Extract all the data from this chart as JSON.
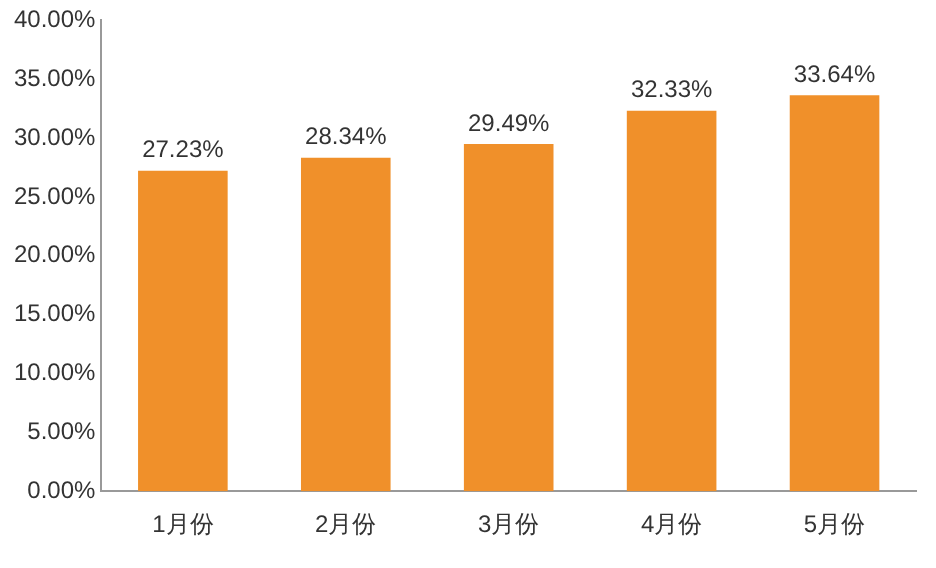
{
  "chart_data": {
    "type": "bar",
    "categories": [
      "1月份",
      "2月份",
      "3月份",
      "4月份",
      "5月份"
    ],
    "values": [
      27.23,
      28.34,
      29.49,
      32.33,
      33.64
    ],
    "color": "#f0902a",
    "value_labels": [
      "27.23%",
      "28.34%",
      "29.49%",
      "32.33%",
      "33.64%"
    ],
    "ylim": [
      0,
      40
    ],
    "yticks": [
      {
        "value": 0,
        "label": "0.00%"
      },
      {
        "value": 5,
        "label": "5.00%"
      },
      {
        "value": 10,
        "label": "10.00%"
      },
      {
        "value": 15,
        "label": "15.00%"
      },
      {
        "value": 20,
        "label": "20.00%"
      },
      {
        "value": 25,
        "label": "25.00%"
      },
      {
        "value": 30,
        "label": "30.00%"
      },
      {
        "value": 35,
        "label": "35.00%"
      },
      {
        "value": 40,
        "label": "40.00%"
      }
    ],
    "grid": false,
    "legend": false
  }
}
